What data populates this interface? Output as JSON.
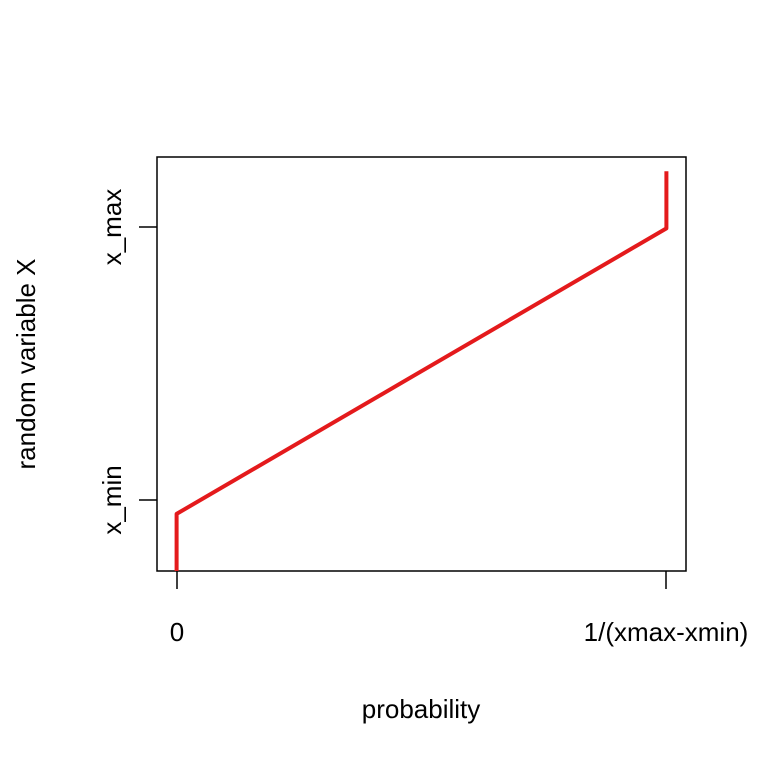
{
  "chart_data": {
    "type": "line",
    "title": "",
    "xlabel": "probability",
    "ylabel": "random variable X",
    "x_tick_labels": [
      "0",
      "1/(xmax-xmin)"
    ],
    "y_tick_labels": [
      "x_min",
      "x_max"
    ],
    "xlim": [
      -0.04,
      1.04
    ],
    "ylim": [
      -0.2,
      1.25
    ],
    "x_ticks": [
      0,
      1
    ],
    "y_ticks": [
      0,
      1
    ],
    "grid": false,
    "legend": "none",
    "series": [
      {
        "color": "#e41a1c",
        "points": [
          {
            "x": 0,
            "y": -0.2
          },
          {
            "x": 0,
            "y": 0
          },
          {
            "x": 1,
            "y": 1
          },
          {
            "x": 1,
            "y": 1.2
          }
        ]
      }
    ]
  }
}
